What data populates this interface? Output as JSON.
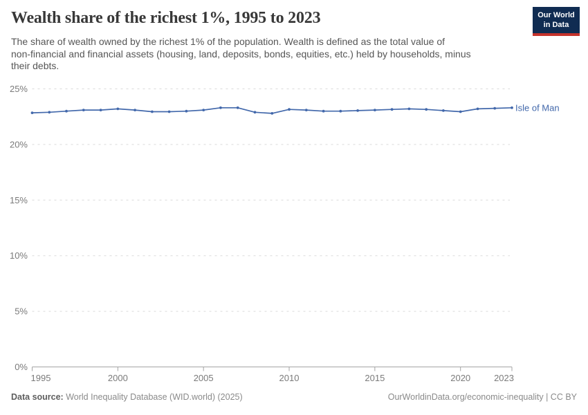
{
  "header": {
    "title": "Wealth share of the richest 1%, 1995 to 2023",
    "subtitle_lines": [
      "The share of wealth owned by the richest 1% of the population. Wealth is defined as the total value of",
      "non-financial and financial assets (housing, land, deposits, bonds, equities, etc.) held by households, minus",
      "their debts."
    ],
    "logo": {
      "line1": "Our World",
      "line2": "in Data",
      "bg_color": "#102c52",
      "accent_color": "#c5332c"
    }
  },
  "chart_data": {
    "type": "line",
    "title": "Wealth share of the richest 1%, 1995 to 2023",
    "xlabel": "",
    "ylabel": "",
    "xlim": [
      1995,
      2023
    ],
    "ylim": [
      0,
      25
    ],
    "x_ticks": [
      1995,
      2000,
      2005,
      2010,
      2015,
      2020,
      2023
    ],
    "y_ticks": [
      0,
      5,
      10,
      15,
      20,
      25
    ],
    "y_tick_suffix": "%",
    "grid": "horizontal-dashed",
    "grid_color": "#dadada",
    "axis_color": "#a3a3a3",
    "tick_label_color": "#7a7a7a",
    "legend_position": "end-of-line-label",
    "series": [
      {
        "name": "Isle of Man",
        "color": "#4268ab",
        "x": [
          1995,
          1996,
          1997,
          1998,
          1999,
          2000,
          2001,
          2002,
          2003,
          2004,
          2005,
          2006,
          2007,
          2008,
          2009,
          2010,
          2011,
          2012,
          2013,
          2014,
          2015,
          2016,
          2017,
          2018,
          2019,
          2020,
          2021,
          2022,
          2023
        ],
        "values": [
          22.85,
          22.9,
          23.0,
          23.1,
          23.1,
          23.2,
          23.1,
          22.95,
          22.95,
          23.0,
          23.1,
          23.3,
          23.3,
          22.9,
          22.8,
          23.15,
          23.1,
          23.0,
          23.0,
          23.05,
          23.1,
          23.15,
          23.2,
          23.15,
          23.05,
          22.95,
          23.2,
          23.25,
          23.3
        ]
      }
    ]
  },
  "footer": {
    "source_label": "Data source:",
    "source_text": " World Inequality Database (WID.world) (2025)",
    "url_text": "OurWorldinData.org/economic-inequality",
    "separator": " | ",
    "license": "CC BY"
  }
}
